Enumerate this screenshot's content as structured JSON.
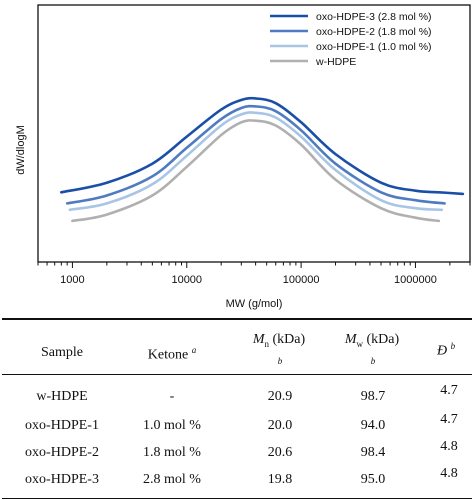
{
  "chart_data": {
    "type": "line",
    "title": "",
    "xlabel": "MW (g/mol)",
    "ylabel": "dW/dlogM",
    "x_scale": "log",
    "xlim": [
      500,
      3000000
    ],
    "ylim": [
      0,
      1.05
    ],
    "x_ticks": [
      1000,
      10000,
      100000,
      1000000
    ],
    "x_tick_labels": [
      "1000",
      "10000",
      "100000",
      "1000000"
    ],
    "y_ticks": [],
    "grid": false,
    "legend_position": "top-right",
    "series": [
      {
        "name": "oxo-HDPE-3 (2.8 mol %)",
        "color": "#1a4fa8",
        "x": [
          800,
          2000,
          5000,
          10000,
          20000,
          30000,
          40000,
          60000,
          100000,
          200000,
          500000,
          1000000,
          1600000,
          2600000
        ],
        "y": [
          0.3,
          0.36,
          0.48,
          0.65,
          0.82,
          0.88,
          0.89,
          0.86,
          0.74,
          0.54,
          0.36,
          0.31,
          0.3,
          0.29
        ]
      },
      {
        "name": "oxo-HDPE-2 (1.8 mol %)",
        "color": "#4f7cc0",
        "x": [
          900,
          2000,
          5000,
          10000,
          20000,
          30000,
          40000,
          60000,
          100000,
          200000,
          500000,
          1000000,
          1800000
        ],
        "y": [
          0.23,
          0.28,
          0.4,
          0.58,
          0.76,
          0.83,
          0.84,
          0.81,
          0.69,
          0.48,
          0.3,
          0.25,
          0.23
        ]
      },
      {
        "name": "oxo-HDPE-1 (1.0 mol %)",
        "color": "#a8c5e6",
        "x": [
          950,
          2000,
          5000,
          10000,
          20000,
          30000,
          40000,
          60000,
          100000,
          200000,
          500000,
          1000000,
          1700000
        ],
        "y": [
          0.19,
          0.23,
          0.35,
          0.53,
          0.72,
          0.79,
          0.8,
          0.77,
          0.65,
          0.44,
          0.25,
          0.2,
          0.19
        ]
      },
      {
        "name": "w-HDPE",
        "color": "#b0b0b0",
        "x": [
          1000,
          2000,
          5000,
          10000,
          20000,
          30000,
          40000,
          60000,
          100000,
          200000,
          500000,
          1000000,
          1600000
        ],
        "y": [
          0.12,
          0.16,
          0.28,
          0.46,
          0.66,
          0.74,
          0.75,
          0.72,
          0.6,
          0.38,
          0.2,
          0.14,
          0.12
        ]
      }
    ]
  },
  "table": {
    "headers": {
      "sample": "Sample",
      "ketone": "Ketone",
      "ketone_note": "a",
      "mn_symbol": "M",
      "mn_sub": "n",
      "mn_unit": "(kDa)",
      "mn_note": "b",
      "mw_symbol": "M",
      "mw_sub": "w",
      "mw_unit": "(kDa)",
      "mw_note": "b",
      "d_symbol": "Đ",
      "d_note": "b"
    },
    "rows": [
      {
        "sample": "w-HDPE",
        "ketone": "-",
        "mn": "20.9",
        "mw": "98.7",
        "d": "4.7"
      },
      {
        "sample": "oxo-HDPE-1",
        "ketone": "1.0 mol %",
        "mn": "20.0",
        "mw": "94.0",
        "d": "4.7"
      },
      {
        "sample": "oxo-HDPE-2",
        "ketone": "1.8 mol %",
        "mn": "20.6",
        "mw": "98.4",
        "d": "4.8"
      },
      {
        "sample": "oxo-HDPE-3",
        "ketone": "2.8 mol %",
        "mn": "19.8",
        "mw": "95.0",
        "d": "4.8"
      }
    ]
  }
}
